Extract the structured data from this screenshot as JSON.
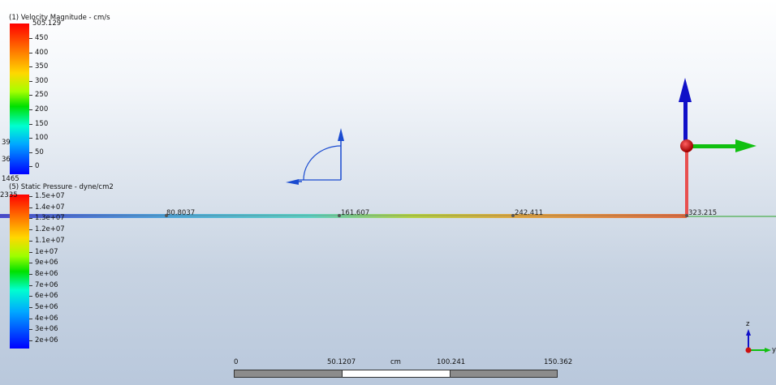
{
  "velocity_legend": {
    "title": "(1) Velocity Magnitude - cm/s",
    "max_label": "505.129",
    "ticks": [
      "450",
      "400",
      "350",
      "300",
      "250",
      "200",
      "150",
      "100",
      "50",
      "0"
    ]
  },
  "pressure_legend": {
    "title": "(5) Static Pressure - dyne/cm2",
    "ticks": [
      "1.5e+07",
      "1.4e+07",
      "1.3e+07",
      "1.2e+07",
      "1.1e+07",
      "1e+07",
      "9e+06",
      "8e+06",
      "7e+06",
      "6e+06",
      "5e+06",
      "4e+06",
      "3e+06",
      "2e+06"
    ]
  },
  "clipped_labels": {
    "c1": "39",
    "c2": "36",
    "c3": "1465",
    "c4": "2335"
  },
  "probe_labels": [
    "80.8037",
    "161.607",
    "242.411",
    "323.215"
  ],
  "scale_bar": {
    "labels": [
      "0",
      "50.1207",
      "cm",
      "100.241",
      "150.362"
    ]
  },
  "triad": {
    "z_label": "z",
    "y_label": "y"
  },
  "colors": {
    "pipe_start": "#3a3ad0",
    "pipe_mid": "#40d0d0",
    "pipe_mid2": "#b0d030",
    "pipe_end": "#e06030",
    "riser": "#e85050",
    "arrow_blue": "#1010c8",
    "arrow_green": "#10c010",
    "node_red": "#cc1010",
    "axis_green": "#4caf50"
  }
}
